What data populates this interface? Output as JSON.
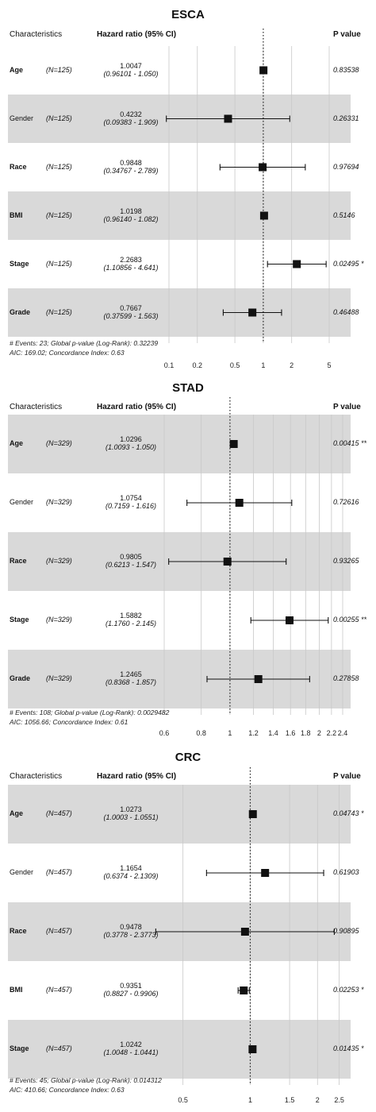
{
  "chart_data": [
    {
      "type": "forest",
      "title": "ESCA",
      "headers": {
        "characteristics": "Characteristics",
        "hr": "Hazard ratio (95% CI)",
        "p": "P value"
      },
      "scale": "log",
      "xlim": [
        0.1,
        5
      ],
      "ticks": [
        0.1,
        0.2,
        0.5,
        1,
        2,
        5
      ],
      "tick_labels": [
        "0.1",
        "0.2",
        "0.5",
        "1",
        "2",
        "5"
      ],
      "rows": [
        {
          "label": "Age",
          "bold": true,
          "n": "(N=125)",
          "hr_text": "1.0047",
          "ci_text": "(0.96101 - 1.050)",
          "hr": 1.0047,
          "lo": 0.96101,
          "hi": 1.05,
          "p": "0.83538",
          "shaded": false
        },
        {
          "label": "Gender",
          "bold": false,
          "n": "(N=125)",
          "hr_text": "0.4232",
          "ci_text": "(0.09383 - 1.909)",
          "hr": 0.4232,
          "lo": 0.09383,
          "hi": 1.909,
          "p": "0.26331",
          "shaded": true
        },
        {
          "label": "Race",
          "bold": true,
          "n": "(N=125)",
          "hr_text": "0.9848",
          "ci_text": "(0.34767 - 2.789)",
          "hr": 0.9848,
          "lo": 0.34767,
          "hi": 2.789,
          "p": "0.97694",
          "shaded": false
        },
        {
          "label": "BMI",
          "bold": true,
          "n": "(N=125)",
          "hr_text": "1.0198",
          "ci_text": "(0.96140 - 1.082)",
          "hr": 1.0198,
          "lo": 0.9614,
          "hi": 1.082,
          "p": "0.5146",
          "shaded": true
        },
        {
          "label": "Stage",
          "bold": true,
          "n": "(N=125)",
          "hr_text": "2.2683",
          "ci_text": "(1.10856 - 4.641)",
          "hr": 2.2683,
          "lo": 1.10856,
          "hi": 4.641,
          "p": "0.02495 *",
          "shaded": false
        },
        {
          "label": "Grade",
          "bold": true,
          "n": "(N=125)",
          "hr_text": "0.7667",
          "ci_text": "(0.37599 - 1.563)",
          "hr": 0.7667,
          "lo": 0.37599,
          "hi": 1.563,
          "p": "0.46488",
          "shaded": true
        }
      ],
      "footnote1": "# Events: 23; Global p-value (Log-Rank): 0.32239",
      "footnote2": "AIC: 169.02; Concordance Index: 0.63"
    },
    {
      "type": "forest",
      "title": "STAD",
      "headers": {
        "characteristics": "Characteristics",
        "hr": "Hazard ratio (95% CI)",
        "p": "P value"
      },
      "scale": "log",
      "xlim": [
        0.6,
        2.4
      ],
      "ticks": [
        0.6,
        0.8,
        1,
        1.2,
        1.4,
        1.6,
        1.8,
        2,
        2.2,
        2.4
      ],
      "tick_labels": [
        "0.6",
        "0.8",
        "1",
        "1.2",
        "1.4",
        "1.6",
        "1.8",
        "2",
        "2.2",
        "2.4"
      ],
      "rows": [
        {
          "label": "Age",
          "bold": true,
          "n": "(N=329)",
          "hr_text": "1.0296",
          "ci_text": "(1.0093 - 1.050)",
          "hr": 1.0296,
          "lo": 1.0093,
          "hi": 1.05,
          "p": "0.00415 **",
          "shaded": true
        },
        {
          "label": "Gender",
          "bold": false,
          "n": "(N=329)",
          "hr_text": "1.0754",
          "ci_text": "(0.7159 - 1.616)",
          "hr": 1.0754,
          "lo": 0.7159,
          "hi": 1.616,
          "p": "0.72616",
          "shaded": false
        },
        {
          "label": "Race",
          "bold": true,
          "n": "(N=329)",
          "hr_text": "0.9805",
          "ci_text": "(0.6213 - 1.547)",
          "hr": 0.9805,
          "lo": 0.6213,
          "hi": 1.547,
          "p": "0.93265",
          "shaded": true
        },
        {
          "label": "Stage",
          "bold": true,
          "n": "(N=329)",
          "hr_text": "1.5882",
          "ci_text": "(1.1760 - 2.145)",
          "hr": 1.5882,
          "lo": 1.176,
          "hi": 2.145,
          "p": "0.00255 **",
          "shaded": false
        },
        {
          "label": "Grade",
          "bold": true,
          "n": "(N=329)",
          "hr_text": "1.2465",
          "ci_text": "(0.8368 - 1.857)",
          "hr": 1.2465,
          "lo": 0.8368,
          "hi": 1.857,
          "p": "0.27858",
          "shaded": true
        }
      ],
      "footnote1": "# Events: 108; Global p-value (Log-Rank): 0.0029482",
      "footnote2": "AIC: 1056.66; Concordance Index: 0.61"
    },
    {
      "type": "forest",
      "title": "CRC",
      "headers": {
        "characteristics": "Characteristics",
        "hr": "Hazard ratio (95% CI)",
        "p": "P value"
      },
      "scale": "log",
      "xlim": [
        0.35,
        2.7
      ],
      "ticks": [
        0.5,
        1,
        1.5,
        2,
        2.5
      ],
      "tick_labels": [
        "0.5",
        "1",
        "1.5",
        "2",
        "2.5"
      ],
      "rows": [
        {
          "label": "Age",
          "bold": true,
          "n": "(N=457)",
          "hr_text": "1.0273",
          "ci_text": "(1.0003 - 1.0551)",
          "hr": 1.0273,
          "lo": 1.0003,
          "hi": 1.0551,
          "p": "0.04743 *",
          "shaded": true
        },
        {
          "label": "Gender",
          "bold": false,
          "n": "(N=457)",
          "hr_text": "1.1654",
          "ci_text": "(0.6374 - 2.1309)",
          "hr": 1.1654,
          "lo": 0.6374,
          "hi": 2.1309,
          "p": "0.61903",
          "shaded": false
        },
        {
          "label": "Race",
          "bold": true,
          "n": "(N=457)",
          "hr_text": "0.9478",
          "ci_text": "(0.3778 - 2.3773)",
          "hr": 0.9478,
          "lo": 0.3778,
          "hi": 2.3773,
          "p": "0.90895",
          "shaded": true
        },
        {
          "label": "BMI",
          "bold": true,
          "n": "(N=457)",
          "hr_text": "0.9351",
          "ci_text": "(0.8827 - 0.9906)",
          "hr": 0.9351,
          "lo": 0.8827,
          "hi": 0.9906,
          "p": "0.02253 *",
          "shaded": false
        },
        {
          "label": "Stage",
          "bold": true,
          "n": "(N=457)",
          "hr_text": "1.0242",
          "ci_text": "(1.0048 - 1.0441)",
          "hr": 1.0242,
          "lo": 1.0048,
          "hi": 1.0441,
          "p": "0.01435 *",
          "shaded": true
        }
      ],
      "footnote1": "# Events: 45; Global p-value (Log-Rank): 0.014312",
      "footnote2": "AIC: 410.66; Concordance Index: 0.63"
    }
  ]
}
